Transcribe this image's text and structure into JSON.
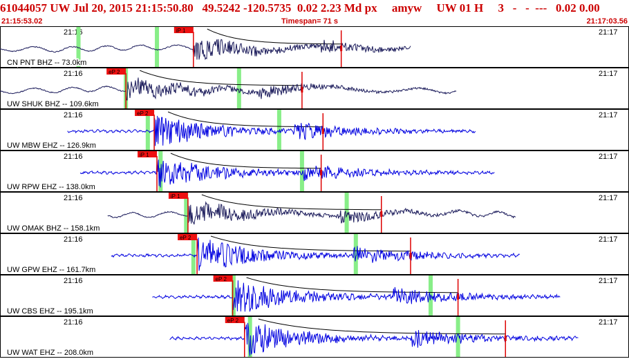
{
  "header": {
    "event_line": "61044057 UW Jul 20, 2015 21:15:50.80   49.5242 -120.5735  0.02 2.23 Md px     amyw     UW 01 H     3   -   -  ---   0.02 0.00",
    "start_time": "21:15:53.02",
    "timespan": "Timespan=  71 s",
    "end_time": "21:17:03.56"
  },
  "colors": {
    "header_text": "#cc0000",
    "bhz_trace": "#1a1a5a",
    "ehz_trace": "#0000e0",
    "pick_box": "#ee1111",
    "pick_line": "#dd0000",
    "window_marker": "#88ee88",
    "model_curve": "#000000",
    "grid": "#000000"
  },
  "chart_data": {
    "type": "line",
    "panels": [
      {
        "label": "CN PNT BHZ -- 73.0km",
        "left_time": "21:16",
        "right_time": "21:17",
        "phase_label": "iP 1",
        "phase_time": 21.2,
        "coda_time": 37.4,
        "windows": [
          8.6,
          17.2
        ],
        "trace_start": 0,
        "trace_end": 45,
        "amplitude": 0.85,
        "trace_kind": "broadband"
      },
      {
        "label": "UW SHUK BHZ -- 109.6km",
        "left_time": "21:16",
        "right_time": "21:17",
        "phase_label": "eP 2",
        "phase_time": 13.8,
        "coda_time": 33.1,
        "windows": [
          13.8,
          26.2
        ],
        "trace_start": 0,
        "trace_end": 50,
        "amplitude": 0.85,
        "trace_kind": "broadband"
      },
      {
        "label": "UW MBW EHZ -- 126.9km",
        "left_time": "21:16",
        "right_time": "21:17",
        "phase_label": "eP 2",
        "phase_time": 16.9,
        "coda_time": 35.4,
        "windows": [
          16.2,
          30.6
        ],
        "trace_start": 7.4,
        "trace_end": 52.1,
        "amplitude": 0.95,
        "trace_kind": "short-period"
      },
      {
        "label": "UW RPW EHZ -- 138.0km",
        "left_time": "21:16",
        "right_time": "21:17",
        "phase_label": "iP 1",
        "phase_time": 17.2,
        "coda_time": 35.2,
        "windows": [
          17.6,
          33.1
        ],
        "trace_start": 8.8,
        "trace_end": 54.2,
        "amplitude": 0.95,
        "trace_kind": "short-period"
      },
      {
        "label": "UW OMAK BHZ -- 158.1km",
        "left_time": "21:16",
        "right_time": "21:17",
        "phase_label": "iP 1",
        "phase_time": 20.6,
        "coda_time": 41.8,
        "windows": [
          20.4,
          38.0
        ],
        "trace_start": 11.8,
        "trace_end": 56.5,
        "amplitude": 0.9,
        "trace_kind": "broadband"
      },
      {
        "label": "UW GPW EHZ -- 161.7km",
        "left_time": "21:16",
        "right_time": "21:17",
        "phase_label": "eP 2",
        "phase_time": 21.6,
        "coda_time": 45.0,
        "windows": [
          21.2,
          39.0
        ],
        "trace_start": 12.2,
        "trace_end": 57.0,
        "amplitude": 1.0,
        "trace_kind": "short-period"
      },
      {
        "label": "UW CBS EHZ -- 195.1km",
        "left_time": "21:16",
        "right_time": "21:17",
        "phase_label": "eP 2",
        "phase_time": 25.5,
        "coda_time": 50.2,
        "windows": [
          25.6,
          47.2
        ],
        "trace_start": 16.7,
        "trace_end": 61.4,
        "amplitude": 1.0,
        "trace_kind": "short-period"
      },
      {
        "label": "UW WAT EHZ -- 208.0km",
        "left_time": "21:16",
        "right_time": "21:17",
        "phase_label": "eP 2",
        "phase_time": 26.8,
        "coda_time": 55.4,
        "windows": [
          27.4,
          50.2
        ],
        "trace_start": 18.6,
        "trace_end": 63.4,
        "amplitude": 1.0,
        "trace_kind": "short-period"
      }
    ]
  }
}
